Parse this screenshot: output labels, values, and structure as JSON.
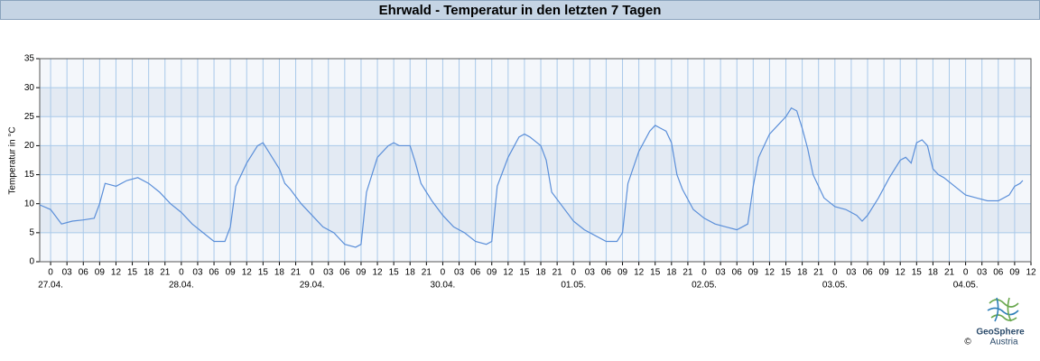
{
  "chart_data": {
    "type": "line",
    "title": "Ehrwald - Temperatur in den letzten 7 Tagen",
    "ylabel": "Temperatur in °C",
    "color": "#5b8fd9",
    "x": [
      -2,
      0,
      2,
      4,
      6,
      8,
      9,
      10,
      12,
      14,
      16,
      18,
      20,
      22,
      24,
      26,
      28,
      30,
      32,
      33,
      34,
      36,
      38,
      39,
      40,
      42,
      43,
      44,
      46,
      48,
      50,
      52,
      54,
      56,
      57,
      58,
      60,
      62,
      63,
      64,
      66,
      67,
      68,
      70,
      72,
      74,
      76,
      78,
      80,
      81,
      82,
      84,
      86,
      87,
      88,
      90,
      91,
      92,
      94,
      96,
      98,
      100,
      102,
      103,
      104,
      105,
      106,
      108,
      110,
      111,
      112,
      113,
      114,
      115,
      116,
      118,
      120,
      122,
      124,
      126,
      127,
      128,
      129,
      130,
      132,
      134,
      135,
      136,
      137,
      138,
      139,
      140,
      142,
      144,
      146,
      148,
      149,
      150,
      152,
      154,
      156,
      157,
      158,
      159,
      160,
      161,
      162,
      163,
      164,
      166,
      168,
      170,
      172,
      174,
      176,
      177,
      178,
      178.5
    ],
    "values": [
      9.8,
      9,
      6.5,
      7,
      7.2,
      7.5,
      10,
      13.5,
      13,
      14,
      14.5,
      13.5,
      12,
      10,
      8.5,
      6.5,
      5,
      3.5,
      3.5,
      6,
      13,
      17,
      20,
      20.5,
      19,
      16,
      13.5,
      12.5,
      10,
      8,
      6,
      5,
      3,
      2.5,
      3,
      12,
      18,
      20,
      20.5,
      20,
      20,
      17,
      13.5,
      10.5,
      8,
      6,
      5,
      3.5,
      3,
      3.5,
      13,
      18,
      21.5,
      22,
      21.5,
      20,
      17.5,
      12,
      9.5,
      7,
      5.5,
      4.5,
      3.5,
      3.5,
      3.5,
      5,
      13.5,
      19,
      22.5,
      23.5,
      23,
      22.5,
      20.5,
      15,
      12.5,
      9,
      7.5,
      6.5,
      6,
      5.5,
      6,
      6.5,
      13,
      18,
      22,
      24,
      25,
      26.5,
      26,
      23,
      19.5,
      15,
      11,
      9.5,
      9,
      8,
      7,
      8,
      11,
      14.5,
      17.5,
      18,
      17,
      20.5,
      21,
      20,
      16,
      15,
      14.5,
      13,
      11.5,
      11,
      10.5,
      10.5,
      11.5,
      13,
      13.5,
      14
    ],
    "xlim": [
      -2,
      180
    ],
    "ylim": [
      0,
      35
    ],
    "yticks": [
      0,
      5,
      10,
      15,
      20,
      25,
      30,
      35
    ],
    "xticks": [
      0,
      {
        "value": 3,
        "label": "03"
      },
      {
        "value": 6,
        "label": "06"
      },
      {
        "value": 9,
        "label": "09"
      },
      12,
      15,
      18,
      21,
      {
        "value": 24,
        "label": "0"
      },
      {
        "value": 27,
        "label": "03"
      },
      {
        "value": 30,
        "label": "06"
      },
      {
        "value": 33,
        "label": "09"
      },
      {
        "value": 36,
        "label": "12"
      },
      {
        "value": 39,
        "label": "15"
      },
      {
        "value": 42,
        "label": "18"
      },
      {
        "value": 45,
        "label": "21"
      },
      {
        "value": 48,
        "label": "0"
      },
      {
        "value": 51,
        "label": "03"
      },
      {
        "value": 54,
        "label": "06"
      },
      {
        "value": 57,
        "label": "09"
      },
      {
        "value": 60,
        "label": "12"
      },
      {
        "value": 63,
        "label": "15"
      },
      {
        "value": 66,
        "label": "18"
      },
      {
        "value": 69,
        "label": "21"
      },
      {
        "value": 72,
        "label": "0"
      },
      {
        "value": 75,
        "label": "03"
      },
      {
        "value": 78,
        "label": "06"
      },
      {
        "value": 81,
        "label": "09"
      },
      {
        "value": 84,
        "label": "12"
      },
      {
        "value": 87,
        "label": "15"
      },
      {
        "value": 90,
        "label": "18"
      },
      {
        "value": 93,
        "label": "21"
      },
      {
        "value": 96,
        "label": "0"
      },
      {
        "value": 99,
        "label": "03"
      },
      {
        "value": 102,
        "label": "06"
      },
      {
        "value": 105,
        "label": "09"
      },
      {
        "value": 108,
        "label": "12"
      },
      {
        "value": 111,
        "label": "15"
      },
      {
        "value": 114,
        "label": "18"
      },
      {
        "value": 117,
        "label": "21"
      },
      {
        "value": 120,
        "label": "0"
      },
      {
        "value": 123,
        "label": "03"
      },
      {
        "value": 126,
        "label": "06"
      },
      {
        "value": 129,
        "label": "09"
      },
      {
        "value": 132,
        "label": "12"
      },
      {
        "value": 135,
        "label": "15"
      },
      {
        "value": 138,
        "label": "18"
      },
      {
        "value": 141,
        "label": "21"
      },
      {
        "value": 144,
        "label": "0"
      },
      {
        "value": 147,
        "label": "03"
      },
      {
        "value": 150,
        "label": "06"
      },
      {
        "value": 153,
        "label": "09"
      },
      {
        "value": 156,
        "label": "12"
      },
      {
        "value": 159,
        "label": "15"
      },
      {
        "value": 162,
        "label": "18"
      },
      {
        "value": 165,
        "label": "21"
      },
      {
        "value": 168,
        "label": "0"
      },
      {
        "value": 171,
        "label": "03"
      },
      {
        "value": 174,
        "label": "06"
      },
      {
        "value": 177,
        "label": "09"
      },
      {
        "value": 180,
        "label": "12"
      }
    ],
    "day_labels": [
      {
        "value": 0,
        "label": "27.04."
      },
      {
        "value": 24,
        "label": "28.04."
      },
      {
        "value": 48,
        "label": "29.04."
      },
      {
        "value": 72,
        "label": "30.04."
      },
      {
        "value": 96,
        "label": "01.05."
      },
      {
        "value": 120,
        "label": "02.05."
      },
      {
        "value": 144,
        "label": "03.05."
      },
      {
        "value": 168,
        "label": "04.05."
      }
    ],
    "grid": true,
    "bands": true,
    "logo": {
      "name": "GeoSphere",
      "sub": "Austria",
      "copyright": "©"
    }
  }
}
